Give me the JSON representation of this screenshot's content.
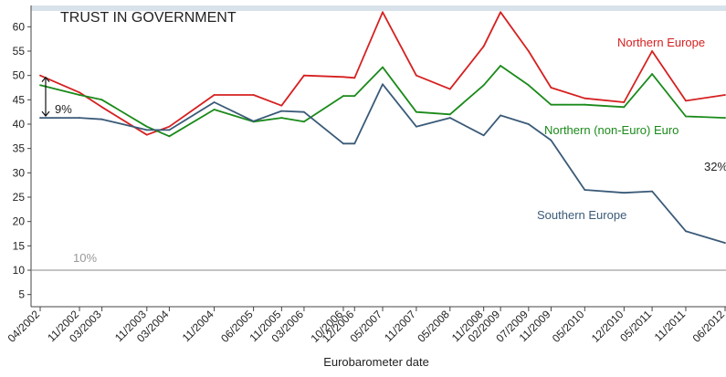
{
  "chart_data": {
    "type": "line",
    "title": "TRUST IN GOVERNMENT",
    "xlabel": "Eurobarometer date",
    "ylabel": "",
    "ylim": [
      2.5,
      64
    ],
    "yticks": [
      5,
      10,
      15,
      20,
      25,
      30,
      35,
      40,
      45,
      50,
      55,
      60
    ],
    "grid": false,
    "categories": [
      "04/2002",
      "11/2002",
      "03/2003",
      "11/2003",
      "03/2004",
      "11/2004",
      "06/2005",
      "11/2005",
      "03/2006",
      "10/2006",
      "12/2006",
      "05/2007",
      "11/2007",
      "05/2008",
      "11/2008",
      "02/2009",
      "07/2009",
      "11/2009",
      "05/2010",
      "12/2010",
      "05/2011",
      "11/2011",
      "06/2012"
    ],
    "x": [
      0,
      7,
      11,
      19,
      23,
      31,
      38,
      43,
      47,
      54,
      56,
      61,
      67,
      73,
      79,
      82,
      87,
      91,
      97,
      104,
      109,
      115,
      122
    ],
    "series": [
      {
        "name": "Northern Europe",
        "color": "#d62020",
        "label": "Northern Europe",
        "values": [
          50,
          46.5,
          43.5,
          37.8,
          39.5,
          46,
          46,
          43.8,
          50,
          49.7,
          49.5,
          63,
          50,
          47.2,
          56,
          63,
          55,
          47.5,
          45.3,
          44.5,
          55,
          44.8,
          46
        ]
      },
      {
        "name": "Northern (non-Euro) Europe",
        "color": "#1a8a1a",
        "label": "Northern (non-Euro) Euro",
        "values": [
          48,
          46,
          45,
          39.5,
          37.5,
          43,
          40.5,
          41.3,
          40.5,
          45.8,
          45.8,
          51.7,
          42.5,
          42,
          48,
          52,
          48,
          44,
          44,
          43.5,
          50.3,
          41.6,
          41.3
        ]
      },
      {
        "name": "Southern Europe",
        "color": "#3a5a78",
        "label": "Southern Europe",
        "values": [
          41.3,
          41.3,
          41,
          38.8,
          38.8,
          44.5,
          40.6,
          42.7,
          42.5,
          36,
          36,
          48.2,
          39.5,
          41.3,
          37.7,
          41.8,
          40,
          36.7,
          26.5,
          25.9,
          26.2,
          18,
          15.6
        ]
      }
    ],
    "reference_line": {
      "y": 10,
      "label": "10%"
    },
    "annotations": {
      "gap_bracket": "9%",
      "right_gap": "32%"
    }
  }
}
